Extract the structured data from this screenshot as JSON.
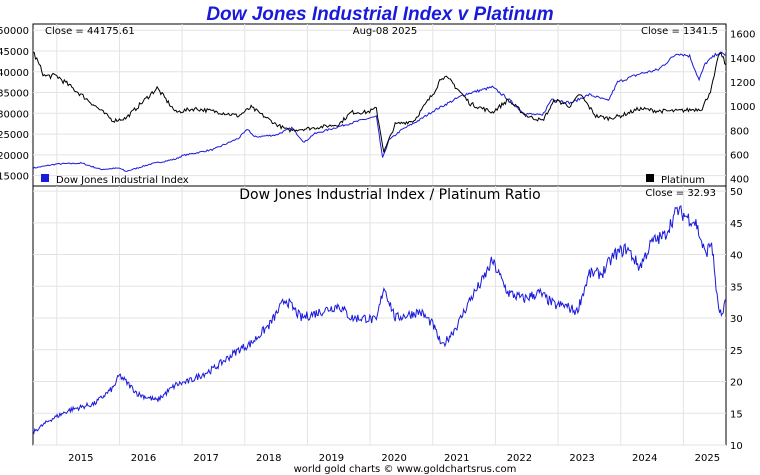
{
  "chart_data": {
    "title": "Dow Jones Industrial Index v Platinum",
    "credit": "world gold charts © www.goldchartsrus.com",
    "x_ticks": [
      "2015",
      "2016",
      "2017",
      "2018",
      "2019",
      "2020",
      "2021",
      "2022",
      "2023",
      "2024",
      "2025"
    ],
    "x_range": [
      2014.62,
      2025.68
    ],
    "top": {
      "type": "line",
      "close_left": "Close = 44175.61",
      "date": "Aug-08  2025",
      "close_right": "Close = 1341.5",
      "left_axis": {
        "ticks": [
          15000,
          20000,
          25000,
          30000,
          35000,
          40000,
          45000,
          50000
        ],
        "range": [
          12500,
          51500
        ]
      },
      "right_axis": {
        "ticks": [
          400,
          600,
          800,
          1000,
          1200,
          1400,
          1600
        ],
        "range": [
          340,
          1680
        ]
      },
      "series": [
        {
          "name": "Dow Jones Industrial Index",
          "axis": "left",
          "color": "#1a1adb",
          "points": [
            [
              2014.62,
              16800
            ],
            [
              2015.0,
              17800
            ],
            [
              2015.4,
              18000
            ],
            [
              2015.7,
              16500
            ],
            [
              2016.0,
              16800
            ],
            [
              2016.1,
              16000
            ],
            [
              2016.5,
              17800
            ],
            [
              2016.9,
              19000
            ],
            [
              2017.0,
              19800
            ],
            [
              2017.5,
              21300
            ],
            [
              2017.9,
              24000
            ],
            [
              2018.05,
              26200
            ],
            [
              2018.15,
              24300
            ],
            [
              2018.5,
              24800
            ],
            [
              2018.75,
              26500
            ],
            [
              2018.95,
              23000
            ],
            [
              2019.1,
              25000
            ],
            [
              2019.5,
              26800
            ],
            [
              2019.9,
              28500
            ],
            [
              2020.1,
              29200
            ],
            [
              2020.2,
              19200
            ],
            [
              2020.3,
              23500
            ],
            [
              2020.5,
              26000
            ],
            [
              2020.8,
              28500
            ],
            [
              2021.0,
              30500
            ],
            [
              2021.5,
              34500
            ],
            [
              2021.95,
              36300
            ],
            [
              2022.2,
              33500
            ],
            [
              2022.45,
              30000
            ],
            [
              2022.75,
              29500
            ],
            [
              2022.9,
              33500
            ],
            [
              2023.2,
              32500
            ],
            [
              2023.5,
              34500
            ],
            [
              2023.8,
              33000
            ],
            [
              2023.95,
              37500
            ],
            [
              2024.3,
              39500
            ],
            [
              2024.6,
              40500
            ],
            [
              2024.9,
              44500
            ],
            [
              2025.1,
              43800
            ],
            [
              2025.25,
              38000
            ],
            [
              2025.35,
              42000
            ],
            [
              2025.55,
              44500
            ],
            [
              2025.68,
              44175
            ]
          ]
        },
        {
          "name": "Platinum",
          "axis": "right",
          "color": "#000000",
          "points": [
            [
              2014.62,
              1450
            ],
            [
              2014.8,
              1250
            ],
            [
              2015.0,
              1250
            ],
            [
              2015.5,
              1050
            ],
            [
              2015.9,
              880
            ],
            [
              2016.1,
              900
            ],
            [
              2016.4,
              1050
            ],
            [
              2016.6,
              1150
            ],
            [
              2016.9,
              950
            ],
            [
              2017.2,
              980
            ],
            [
              2017.6,
              950
            ],
            [
              2017.9,
              920
            ],
            [
              2018.1,
              990
            ],
            [
              2018.5,
              850
            ],
            [
              2018.7,
              800
            ],
            [
              2019.1,
              820
            ],
            [
              2019.5,
              850
            ],
            [
              2019.7,
              950
            ],
            [
              2019.95,
              950
            ],
            [
              2020.1,
              980
            ],
            [
              2020.22,
              620
            ],
            [
              2020.4,
              850
            ],
            [
              2020.7,
              880
            ],
            [
              2021.0,
              1100
            ],
            [
              2021.15,
              1250
            ],
            [
              2021.3,
              1200
            ],
            [
              2021.6,
              1020
            ],
            [
              2021.95,
              950
            ],
            [
              2022.2,
              1050
            ],
            [
              2022.5,
              920
            ],
            [
              2022.75,
              880
            ],
            [
              2022.95,
              1050
            ],
            [
              2023.2,
              1000
            ],
            [
              2023.35,
              1100
            ],
            [
              2023.6,
              920
            ],
            [
              2023.8,
              900
            ],
            [
              2024.0,
              920
            ],
            [
              2024.3,
              980
            ],
            [
              2024.6,
              960
            ],
            [
              2024.9,
              960
            ],
            [
              2025.1,
              970
            ],
            [
              2025.3,
              980
            ],
            [
              2025.45,
              1150
            ],
            [
              2025.58,
              1450
            ],
            [
              2025.68,
              1341.5
            ]
          ]
        }
      ]
    },
    "bottom": {
      "type": "line",
      "title": "Dow Jones Industrial Index  /  Platinum Ratio",
      "close": "Close = 32.93",
      "right_axis": {
        "ticks": [
          10,
          15,
          20,
          25,
          30,
          35,
          40,
          45,
          50
        ],
        "range": [
          10,
          50.8
        ]
      },
      "series": [
        {
          "name": "ratio",
          "color": "#1a1adb",
          "points": [
            [
              2014.62,
              12
            ],
            [
              2014.9,
              14
            ],
            [
              2015.2,
              15.5
            ],
            [
              2015.6,
              16.5
            ],
            [
              2015.9,
              19
            ],
            [
              2016.0,
              21
            ],
            [
              2016.3,
              18
            ],
            [
              2016.6,
              17
            ],
            [
              2016.9,
              19.5
            ],
            [
              2017.1,
              20
            ],
            [
              2017.5,
              22
            ],
            [
              2017.9,
              25
            ],
            [
              2018.1,
              26
            ],
            [
              2018.4,
              29
            ],
            [
              2018.65,
              33
            ],
            [
              2018.9,
              30
            ],
            [
              2019.2,
              31
            ],
            [
              2019.5,
              32
            ],
            [
              2019.7,
              30
            ],
            [
              2019.95,
              30
            ],
            [
              2020.1,
              29.5
            ],
            [
              2020.22,
              35
            ],
            [
              2020.4,
              30
            ],
            [
              2020.8,
              31
            ],
            [
              2021.0,
              29
            ],
            [
              2021.15,
              25.5
            ],
            [
              2021.4,
              29
            ],
            [
              2021.6,
              33
            ],
            [
              2021.8,
              36
            ],
            [
              2021.95,
              39
            ],
            [
              2022.2,
              34
            ],
            [
              2022.45,
              33
            ],
            [
              2022.7,
              34
            ],
            [
              2022.95,
              32
            ],
            [
              2023.1,
              32
            ],
            [
              2023.3,
              31
            ],
            [
              2023.5,
              37
            ],
            [
              2023.7,
              37
            ],
            [
              2023.9,
              40
            ],
            [
              2024.1,
              41
            ],
            [
              2024.3,
              38
            ],
            [
              2024.5,
              42
            ],
            [
              2024.7,
              43
            ],
            [
              2024.9,
              47
            ],
            [
              2025.05,
              46
            ],
            [
              2025.2,
              45
            ],
            [
              2025.35,
              40
            ],
            [
              2025.45,
              42
            ],
            [
              2025.55,
              32
            ],
            [
              2025.62,
              30
            ],
            [
              2025.68,
              32.93
            ]
          ]
        }
      ]
    }
  }
}
